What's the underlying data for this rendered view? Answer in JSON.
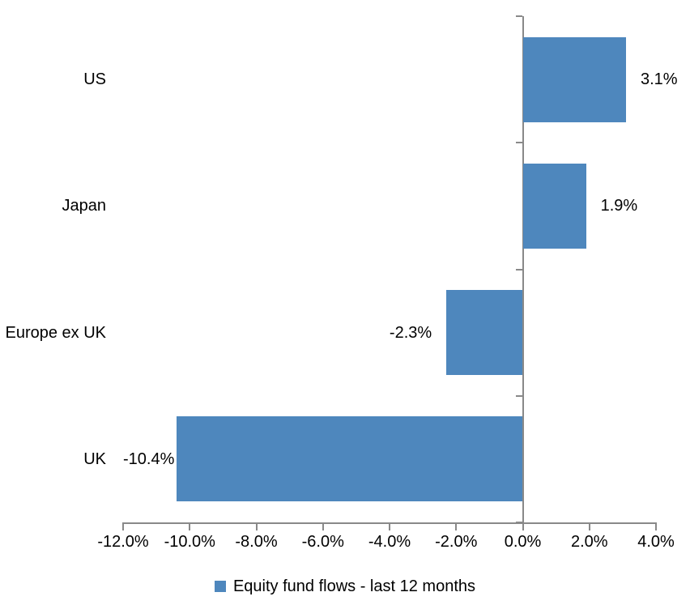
{
  "chart_data": {
    "type": "bar",
    "orientation": "horizontal",
    "title": "",
    "xlabel": "",
    "ylabel": "",
    "categories": [
      "US",
      "Japan",
      "Europe ex UK",
      "UK"
    ],
    "values": [
      3.1,
      1.9,
      -2.3,
      -10.4
    ],
    "value_labels": [
      "3.1%",
      "1.9%",
      "-2.3%",
      "-10.4%"
    ],
    "xlim": [
      -12,
      4
    ],
    "x_tick_step": 2,
    "x_tick_labels": [
      "-12.0%",
      "-10.0%",
      "-8.0%",
      "-6.0%",
      "-4.0%",
      "-2.0%",
      "0.0%",
      "2.0%",
      "4.0%"
    ],
    "grid": false,
    "bar_color": "#4e87bd",
    "axis_color": "#898989",
    "text_color": "#000000",
    "legend_position": "bottom",
    "legend": [
      {
        "label": "Equity fund flows - last 12 months",
        "color": "#4e87bd"
      }
    ]
  }
}
